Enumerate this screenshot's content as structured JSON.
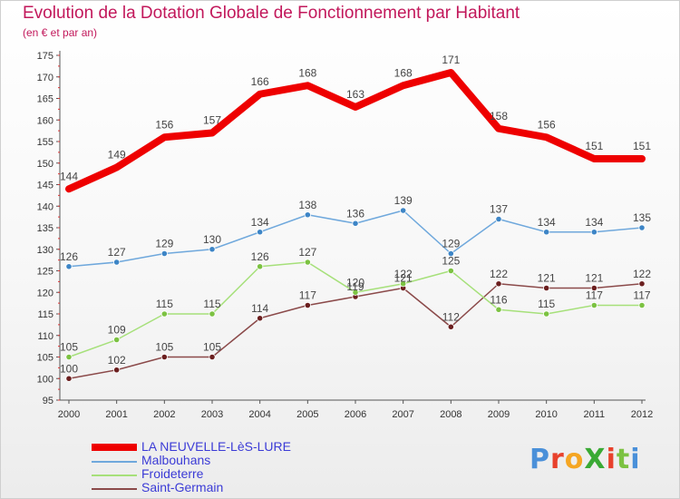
{
  "header": {
    "title": "Evolution de la Dotation Globale de Fonctionnement par Habitant",
    "subtitle": "(en € et par an)"
  },
  "logo": {
    "text": "ProXiti",
    "colors": [
      "#4a90d9",
      "#e8412c",
      "#f5a623",
      "#3aaa35",
      "#e8412c",
      "#7cc242",
      "#4a90d9"
    ]
  },
  "chart_data": {
    "type": "line",
    "title": "Evolution de la Dotation Globale de Fonctionnement par Habitant",
    "subtitle": "(en € et par an)",
    "xlabel": "",
    "ylabel": "",
    "x": [
      "2000",
      "2001",
      "2002",
      "2003",
      "2004",
      "2005",
      "2006",
      "2007",
      "2008",
      "2009",
      "2010",
      "2011",
      "2012"
    ],
    "ylim": [
      95,
      175
    ],
    "yticks": [
      95,
      100,
      105,
      110,
      115,
      120,
      125,
      130,
      135,
      140,
      145,
      150,
      155,
      160,
      165,
      170,
      175
    ],
    "grid": false,
    "legend_position": "bottom-left",
    "series": [
      {
        "name": "LA NEUVELLE-LèS-LURE",
        "color": "#ee0000",
        "width": 8,
        "marker": false,
        "values": [
          144,
          149,
          156,
          157,
          166,
          168,
          163,
          168,
          171,
          158,
          156,
          151,
          151
        ]
      },
      {
        "name": "Malbouhans",
        "color": "#6fa8dc",
        "width": 1.5,
        "marker": true,
        "markerColor": "#3d85c6",
        "values": [
          126,
          127,
          129,
          130,
          134,
          138,
          136,
          139,
          129,
          137,
          134,
          134,
          135
        ]
      },
      {
        "name": "Froideterre",
        "color": "#a6e07a",
        "width": 1.5,
        "marker": true,
        "markerColor": "#7cc242",
        "values": [
          105,
          109,
          115,
          115,
          126,
          127,
          120,
          122,
          125,
          116,
          115,
          117,
          117
        ]
      },
      {
        "name": "Saint-Germain",
        "color": "#8b4a4a",
        "width": 1.5,
        "marker": true,
        "markerColor": "#6b1f1f",
        "values": [
          100,
          102,
          105,
          105,
          114,
          117,
          119,
          121,
          112,
          122,
          121,
          121,
          122
        ]
      }
    ]
  }
}
